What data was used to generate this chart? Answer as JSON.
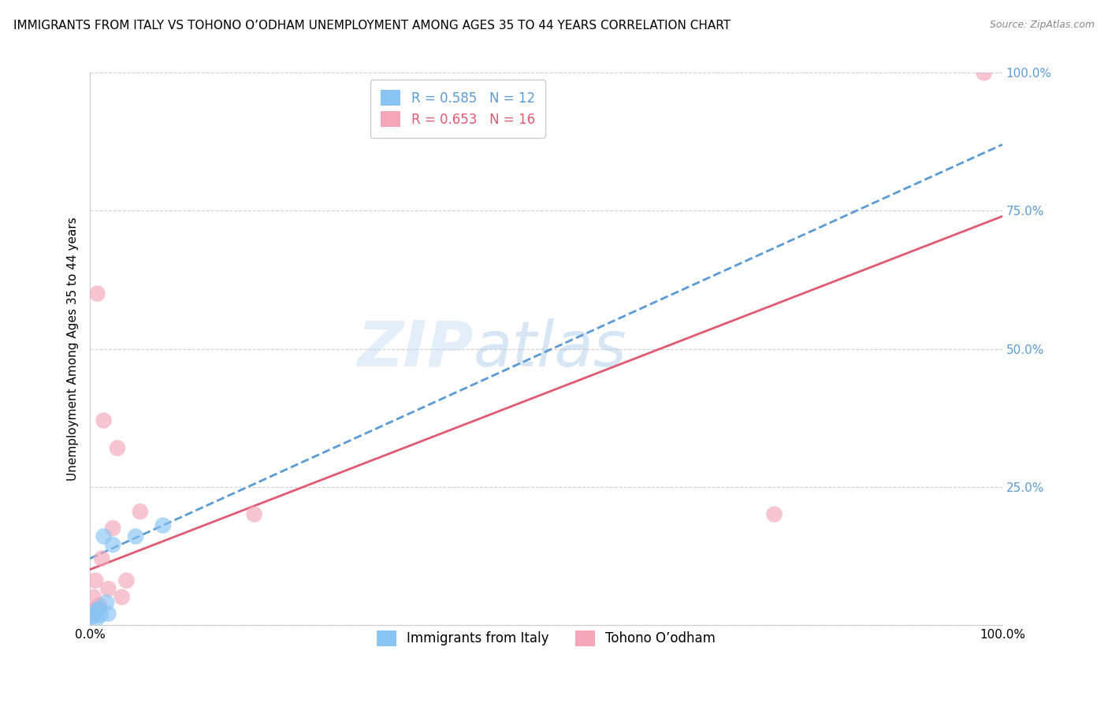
{
  "title": "IMMIGRANTS FROM ITALY VS TOHONO O’ODHAM UNEMPLOYMENT AMONG AGES 35 TO 44 YEARS CORRELATION CHART",
  "source": "Source: ZipAtlas.com",
  "xlabel": "",
  "ylabel": "Unemployment Among Ages 35 to 44 years",
  "xlim": [
    0,
    100
  ],
  "ylim": [
    0,
    100
  ],
  "xticks": [
    0,
    25,
    50,
    75,
    100
  ],
  "yticks": [
    0,
    25,
    50,
    75,
    100
  ],
  "xticklabels": [
    "0.0%",
    "",
    "",
    "",
    "100.0%"
  ],
  "yticklabels": [
    "",
    "25.0%",
    "50.0%",
    "75.0%",
    "100.0%"
  ],
  "italy_color": "#89c4f4",
  "tohono_color": "#f4a7b9",
  "italy_line_color": "#5b9bd5",
  "tohono_line_color": "#e05a72",
  "italy_R": 0.585,
  "italy_N": 12,
  "tohono_R": 0.653,
  "tohono_N": 16,
  "watermark_zip": "ZIP",
  "watermark_atlas": "atlas",
  "background_color": "#ffffff",
  "italy_x": [
    0.3,
    0.5,
    0.7,
    0.8,
    1.0,
    1.2,
    1.5,
    1.8,
    2.0,
    2.5,
    5.0,
    8.0
  ],
  "italy_y": [
    1.5,
    2.0,
    1.0,
    2.5,
    3.0,
    1.8,
    16.0,
    4.0,
    2.0,
    14.5,
    16.0,
    18.0
  ],
  "tohono_x": [
    0.2,
    0.4,
    0.6,
    0.8,
    1.0,
    1.3,
    1.5,
    2.0,
    2.5,
    3.0,
    3.5,
    4.0,
    5.5,
    18.0,
    75.0,
    98.0
  ],
  "tohono_y": [
    2.5,
    5.0,
    8.0,
    60.0,
    3.5,
    12.0,
    37.0,
    6.5,
    17.5,
    32.0,
    5.0,
    8.0,
    20.5,
    20.0,
    20.0,
    100.0
  ],
  "italy_line_x0": 0,
  "italy_line_y0": 12.0,
  "italy_line_x1": 100,
  "italy_line_y1": 87.0,
  "tohono_line_x0": 0,
  "tohono_line_y0": 10.0,
  "tohono_line_x1": 100,
  "tohono_line_y1": 74.0,
  "grid_color": "#d0d0d0",
  "title_fontsize": 11,
  "axis_label_fontsize": 11,
  "tick_fontsize": 11,
  "legend_fontsize": 12
}
